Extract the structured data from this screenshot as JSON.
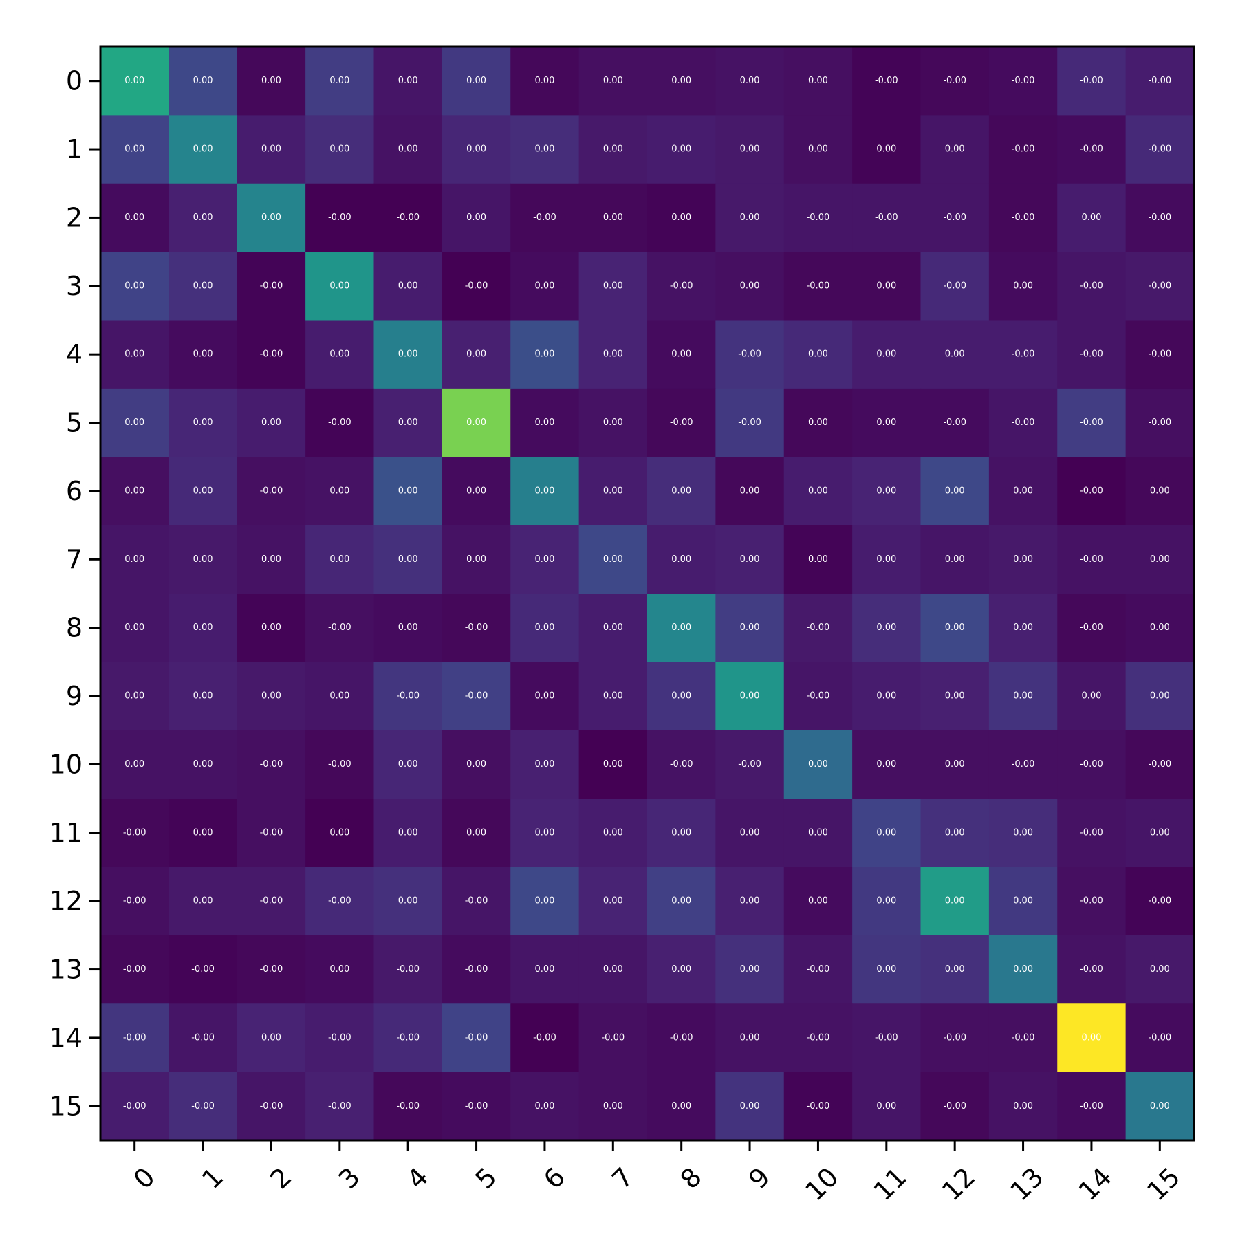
{
  "chart_data": {
    "type": "heatmap",
    "title": "",
    "xlabel": "",
    "ylabel": "",
    "x_categories": [
      "0",
      "1",
      "2",
      "3",
      "4",
      "5",
      "6",
      "7",
      "8",
      "9",
      "10",
      "11",
      "12",
      "13",
      "14",
      "15"
    ],
    "y_categories": [
      "0",
      "1",
      "2",
      "3",
      "4",
      "5",
      "6",
      "7",
      "8",
      "9",
      "10",
      "11",
      "12",
      "13",
      "14",
      "15"
    ],
    "colormap": "viridis",
    "intensity": [
      [
        0.6,
        0.22,
        0.02,
        0.18,
        0.06,
        0.17,
        0.02,
        0.04,
        0.04,
        0.05,
        0.04,
        0.01,
        0.02,
        0.03,
        0.12,
        0.08
      ],
      [
        0.2,
        0.45,
        0.08,
        0.13,
        0.05,
        0.11,
        0.13,
        0.07,
        0.08,
        0.07,
        0.04,
        0.01,
        0.06,
        0.02,
        0.03,
        0.12
      ],
      [
        0.03,
        0.09,
        0.45,
        0.0,
        0.0,
        0.06,
        0.02,
        0.02,
        0.01,
        0.07,
        0.06,
        0.06,
        0.06,
        0.02,
        0.08,
        0.03
      ],
      [
        0.2,
        0.14,
        0.01,
        0.52,
        0.08,
        0.0,
        0.03,
        0.1,
        0.05,
        0.04,
        0.02,
        0.02,
        0.12,
        0.03,
        0.06,
        0.07
      ],
      [
        0.06,
        0.03,
        0.01,
        0.08,
        0.43,
        0.09,
        0.24,
        0.1,
        0.03,
        0.15,
        0.12,
        0.08,
        0.08,
        0.08,
        0.06,
        0.02
      ],
      [
        0.18,
        0.11,
        0.08,
        0.01,
        0.09,
        0.8,
        0.03,
        0.05,
        0.02,
        0.17,
        0.02,
        0.03,
        0.03,
        0.06,
        0.18,
        0.04
      ],
      [
        0.04,
        0.12,
        0.04,
        0.05,
        0.25,
        0.03,
        0.43,
        0.08,
        0.13,
        0.02,
        0.08,
        0.1,
        0.22,
        0.05,
        0.0,
        0.02
      ],
      [
        0.06,
        0.07,
        0.05,
        0.11,
        0.14,
        0.05,
        0.1,
        0.22,
        0.08,
        0.09,
        0.01,
        0.08,
        0.06,
        0.07,
        0.05,
        0.05
      ],
      [
        0.06,
        0.08,
        0.01,
        0.04,
        0.03,
        0.02,
        0.12,
        0.08,
        0.46,
        0.18,
        0.07,
        0.13,
        0.22,
        0.09,
        0.02,
        0.03
      ],
      [
        0.07,
        0.09,
        0.07,
        0.06,
        0.16,
        0.19,
        0.03,
        0.08,
        0.15,
        0.52,
        0.06,
        0.08,
        0.09,
        0.15,
        0.06,
        0.14
      ],
      [
        0.05,
        0.05,
        0.04,
        0.02,
        0.11,
        0.04,
        0.09,
        0.0,
        0.05,
        0.07,
        0.35,
        0.04,
        0.04,
        0.04,
        0.04,
        0.02
      ],
      [
        0.02,
        0.01,
        0.04,
        0.0,
        0.08,
        0.02,
        0.1,
        0.08,
        0.11,
        0.06,
        0.06,
        0.2,
        0.14,
        0.13,
        0.05,
        0.06
      ],
      [
        0.04,
        0.07,
        0.07,
        0.12,
        0.14,
        0.06,
        0.22,
        0.1,
        0.19,
        0.09,
        0.03,
        0.17,
        0.55,
        0.17,
        0.04,
        0.01
      ],
      [
        0.02,
        0.01,
        0.02,
        0.03,
        0.07,
        0.03,
        0.06,
        0.06,
        0.09,
        0.14,
        0.06,
        0.16,
        0.14,
        0.4,
        0.05,
        0.07
      ],
      [
        0.16,
        0.06,
        0.1,
        0.08,
        0.12,
        0.2,
        0.0,
        0.04,
        0.03,
        0.05,
        0.05,
        0.06,
        0.04,
        0.04,
        1.0,
        0.03
      ],
      [
        0.08,
        0.13,
        0.06,
        0.09,
        0.02,
        0.03,
        0.05,
        0.04,
        0.03,
        0.15,
        0.01,
        0.06,
        0.02,
        0.05,
        0.03,
        0.4
      ]
    ],
    "cell_labels": [
      [
        "0.00",
        "0.00",
        "0.00",
        "0.00",
        "0.00",
        "0.00",
        "0.00",
        "0.00",
        "0.00",
        "0.00",
        "0.00",
        "-0.00",
        "-0.00",
        "-0.00",
        "-0.00",
        "-0.00"
      ],
      [
        "0.00",
        "0.00",
        "0.00",
        "0.00",
        "0.00",
        "0.00",
        "0.00",
        "0.00",
        "0.00",
        "0.00",
        "0.00",
        "0.00",
        "0.00",
        "-0.00",
        "-0.00",
        "-0.00"
      ],
      [
        "0.00",
        "0.00",
        "0.00",
        "-0.00",
        "-0.00",
        "0.00",
        "-0.00",
        "0.00",
        "0.00",
        "0.00",
        "-0.00",
        "-0.00",
        "-0.00",
        "-0.00",
        "0.00",
        "-0.00"
      ],
      [
        "0.00",
        "0.00",
        "-0.00",
        "0.00",
        "0.00",
        "-0.00",
        "0.00",
        "0.00",
        "-0.00",
        "0.00",
        "-0.00",
        "0.00",
        "-0.00",
        "0.00",
        "-0.00",
        "-0.00"
      ],
      [
        "0.00",
        "0.00",
        "-0.00",
        "0.00",
        "0.00",
        "0.00",
        "0.00",
        "0.00",
        "0.00",
        "-0.00",
        "0.00",
        "0.00",
        "0.00",
        "-0.00",
        "-0.00",
        "-0.00"
      ],
      [
        "0.00",
        "0.00",
        "0.00",
        "-0.00",
        "0.00",
        "0.00",
        "0.00",
        "0.00",
        "-0.00",
        "-0.00",
        "0.00",
        "0.00",
        "-0.00",
        "-0.00",
        "-0.00",
        "-0.00"
      ],
      [
        "0.00",
        "0.00",
        "-0.00",
        "0.00",
        "0.00",
        "0.00",
        "0.00",
        "0.00",
        "0.00",
        "0.00",
        "0.00",
        "0.00",
        "0.00",
        "0.00",
        "-0.00",
        "0.00"
      ],
      [
        "0.00",
        "0.00",
        "0.00",
        "0.00",
        "0.00",
        "0.00",
        "0.00",
        "0.00",
        "0.00",
        "0.00",
        "0.00",
        "0.00",
        "0.00",
        "0.00",
        "-0.00",
        "0.00"
      ],
      [
        "0.00",
        "0.00",
        "0.00",
        "-0.00",
        "0.00",
        "-0.00",
        "0.00",
        "0.00",
        "0.00",
        "0.00",
        "-0.00",
        "0.00",
        "0.00",
        "0.00",
        "-0.00",
        "0.00"
      ],
      [
        "0.00",
        "0.00",
        "0.00",
        "0.00",
        "-0.00",
        "-0.00",
        "0.00",
        "0.00",
        "0.00",
        "0.00",
        "-0.00",
        "0.00",
        "0.00",
        "0.00",
        "0.00",
        "0.00"
      ],
      [
        "0.00",
        "0.00",
        "-0.00",
        "-0.00",
        "0.00",
        "0.00",
        "0.00",
        "0.00",
        "-0.00",
        "-0.00",
        "0.00",
        "0.00",
        "0.00",
        "-0.00",
        "-0.00",
        "-0.00"
      ],
      [
        "-0.00",
        "0.00",
        "-0.00",
        "0.00",
        "0.00",
        "0.00",
        "0.00",
        "0.00",
        "0.00",
        "0.00",
        "0.00",
        "0.00",
        "0.00",
        "0.00",
        "-0.00",
        "0.00"
      ],
      [
        "-0.00",
        "0.00",
        "-0.00",
        "-0.00",
        "0.00",
        "-0.00",
        "0.00",
        "0.00",
        "0.00",
        "0.00",
        "0.00",
        "0.00",
        "0.00",
        "0.00",
        "-0.00",
        "-0.00"
      ],
      [
        "-0.00",
        "-0.00",
        "-0.00",
        "0.00",
        "-0.00",
        "-0.00",
        "0.00",
        "0.00",
        "0.00",
        "0.00",
        "-0.00",
        "0.00",
        "0.00",
        "0.00",
        "-0.00",
        "0.00"
      ],
      [
        "-0.00",
        "-0.00",
        "0.00",
        "-0.00",
        "-0.00",
        "-0.00",
        "-0.00",
        "-0.00",
        "-0.00",
        "0.00",
        "-0.00",
        "-0.00",
        "-0.00",
        "-0.00",
        "0.00",
        "-0.00"
      ],
      [
        "-0.00",
        "-0.00",
        "-0.00",
        "-0.00",
        "-0.00",
        "-0.00",
        "0.00",
        "0.00",
        "0.00",
        "0.00",
        "-0.00",
        "0.00",
        "-0.00",
        "0.00",
        "-0.00",
        "0.00"
      ]
    ],
    "colorbar": false,
    "grid": false,
    "legend": "none"
  }
}
